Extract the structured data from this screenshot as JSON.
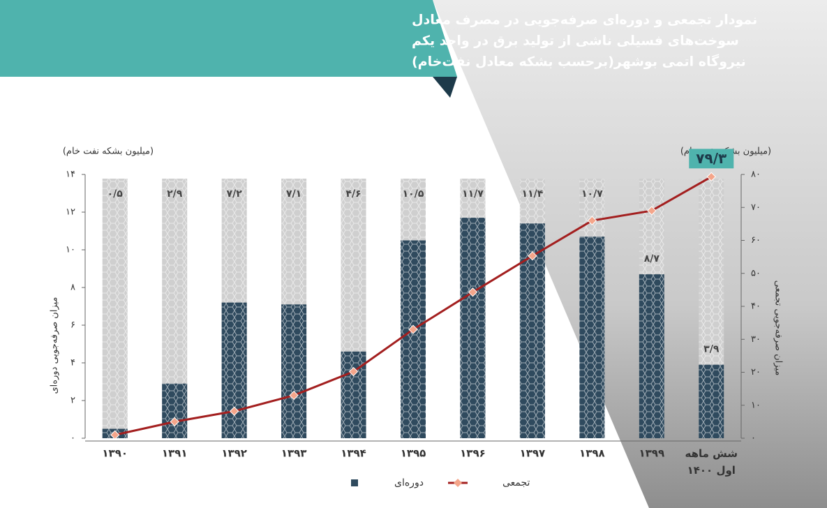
{
  "chart_data": {
    "type": "bar-line",
    "title_lines": [
      "نمودار تجمعی و دوره‌ای صرفه‌جویی در مصرف معادل",
      "سوخت‌های فسیلی ناشی از تولید برق در واحد یکم",
      "نیروگاه اتمی بوشهر(برحسب بشکه معادل نفت‌خام)"
    ],
    "y_unit_label": "(میلیون  بشکه نفت خام)",
    "y2_unit_label": "(میلیون بشکه نفت خام)",
    "y_title": "میزان صرفه‌جویی دوره‌ای",
    "y2_title": "میزان صرفه‌جویی تجمعی",
    "categories": [
      "۱۳۹۰",
      "۱۳۹۱",
      "۱۳۹۲",
      "۱۳۹۳",
      "۱۳۹۴",
      "۱۳۹۵",
      "۱۳۹۶",
      "۱۳۹۷",
      "۱۳۹۸",
      "۱۳۹۹",
      "شش ماهه اول ۱۴۰۰"
    ],
    "series": [
      {
        "name": "دوره‌ای",
        "color": "#2f4a5e",
        "values": [
          0.5,
          2.9,
          7.2,
          7.1,
          4.6,
          10.5,
          11.7,
          11.4,
          10.7,
          8.7,
          3.9
        ],
        "value_labels": [
          "۰/۵",
          "۲/۹",
          "۷/۲",
          "۷/۱",
          "۴/۶",
          "۱۰/۵",
          "۱۱/۷",
          "۱۱/۴",
          "۱۰/۷",
          "۸/۷",
          "۳/۹"
        ]
      },
      {
        "name": "تجمعی",
        "color": "#a31f1f",
        "axis": "y2",
        "values": [
          1,
          5,
          8.2,
          13,
          20.2,
          33,
          44.3,
          55.3,
          66,
          69,
          79.3
        ],
        "value_labels": [
          null,
          null,
          null,
          null,
          null,
          null,
          null,
          null,
          null,
          null,
          "۷۹/۳"
        ]
      }
    ],
    "ylim": [
      0,
      14
    ],
    "yticks": [
      {
        "value": 0,
        "label": "۰"
      },
      {
        "value": 2,
        "label": "۲"
      },
      {
        "value": 4,
        "label": "۴"
      },
      {
        "value": 6,
        "label": "۶"
      },
      {
        "value": 8,
        "label": "۸"
      },
      {
        "value": 10,
        "label": "۱۰"
      },
      {
        "value": 12,
        "label": "۱۲"
      },
      {
        "value": 14,
        "label": "۱۴"
      }
    ],
    "y2lim": [
      0,
      80
    ],
    "y2ticks": [
      {
        "value": 0,
        "label": "۰"
      },
      {
        "value": 10,
        "label": "۱۰"
      },
      {
        "value": 20,
        "label": "۲۰"
      },
      {
        "value": 30,
        "label": "۳۰"
      },
      {
        "value": 40,
        "label": "۴۰"
      },
      {
        "value": 50,
        "label": "۵۰"
      },
      {
        "value": 60,
        "label": "۶۰"
      },
      {
        "value": 70,
        "label": "۷۰"
      },
      {
        "value": 80,
        "label": "۸۰"
      }
    ]
  }
}
